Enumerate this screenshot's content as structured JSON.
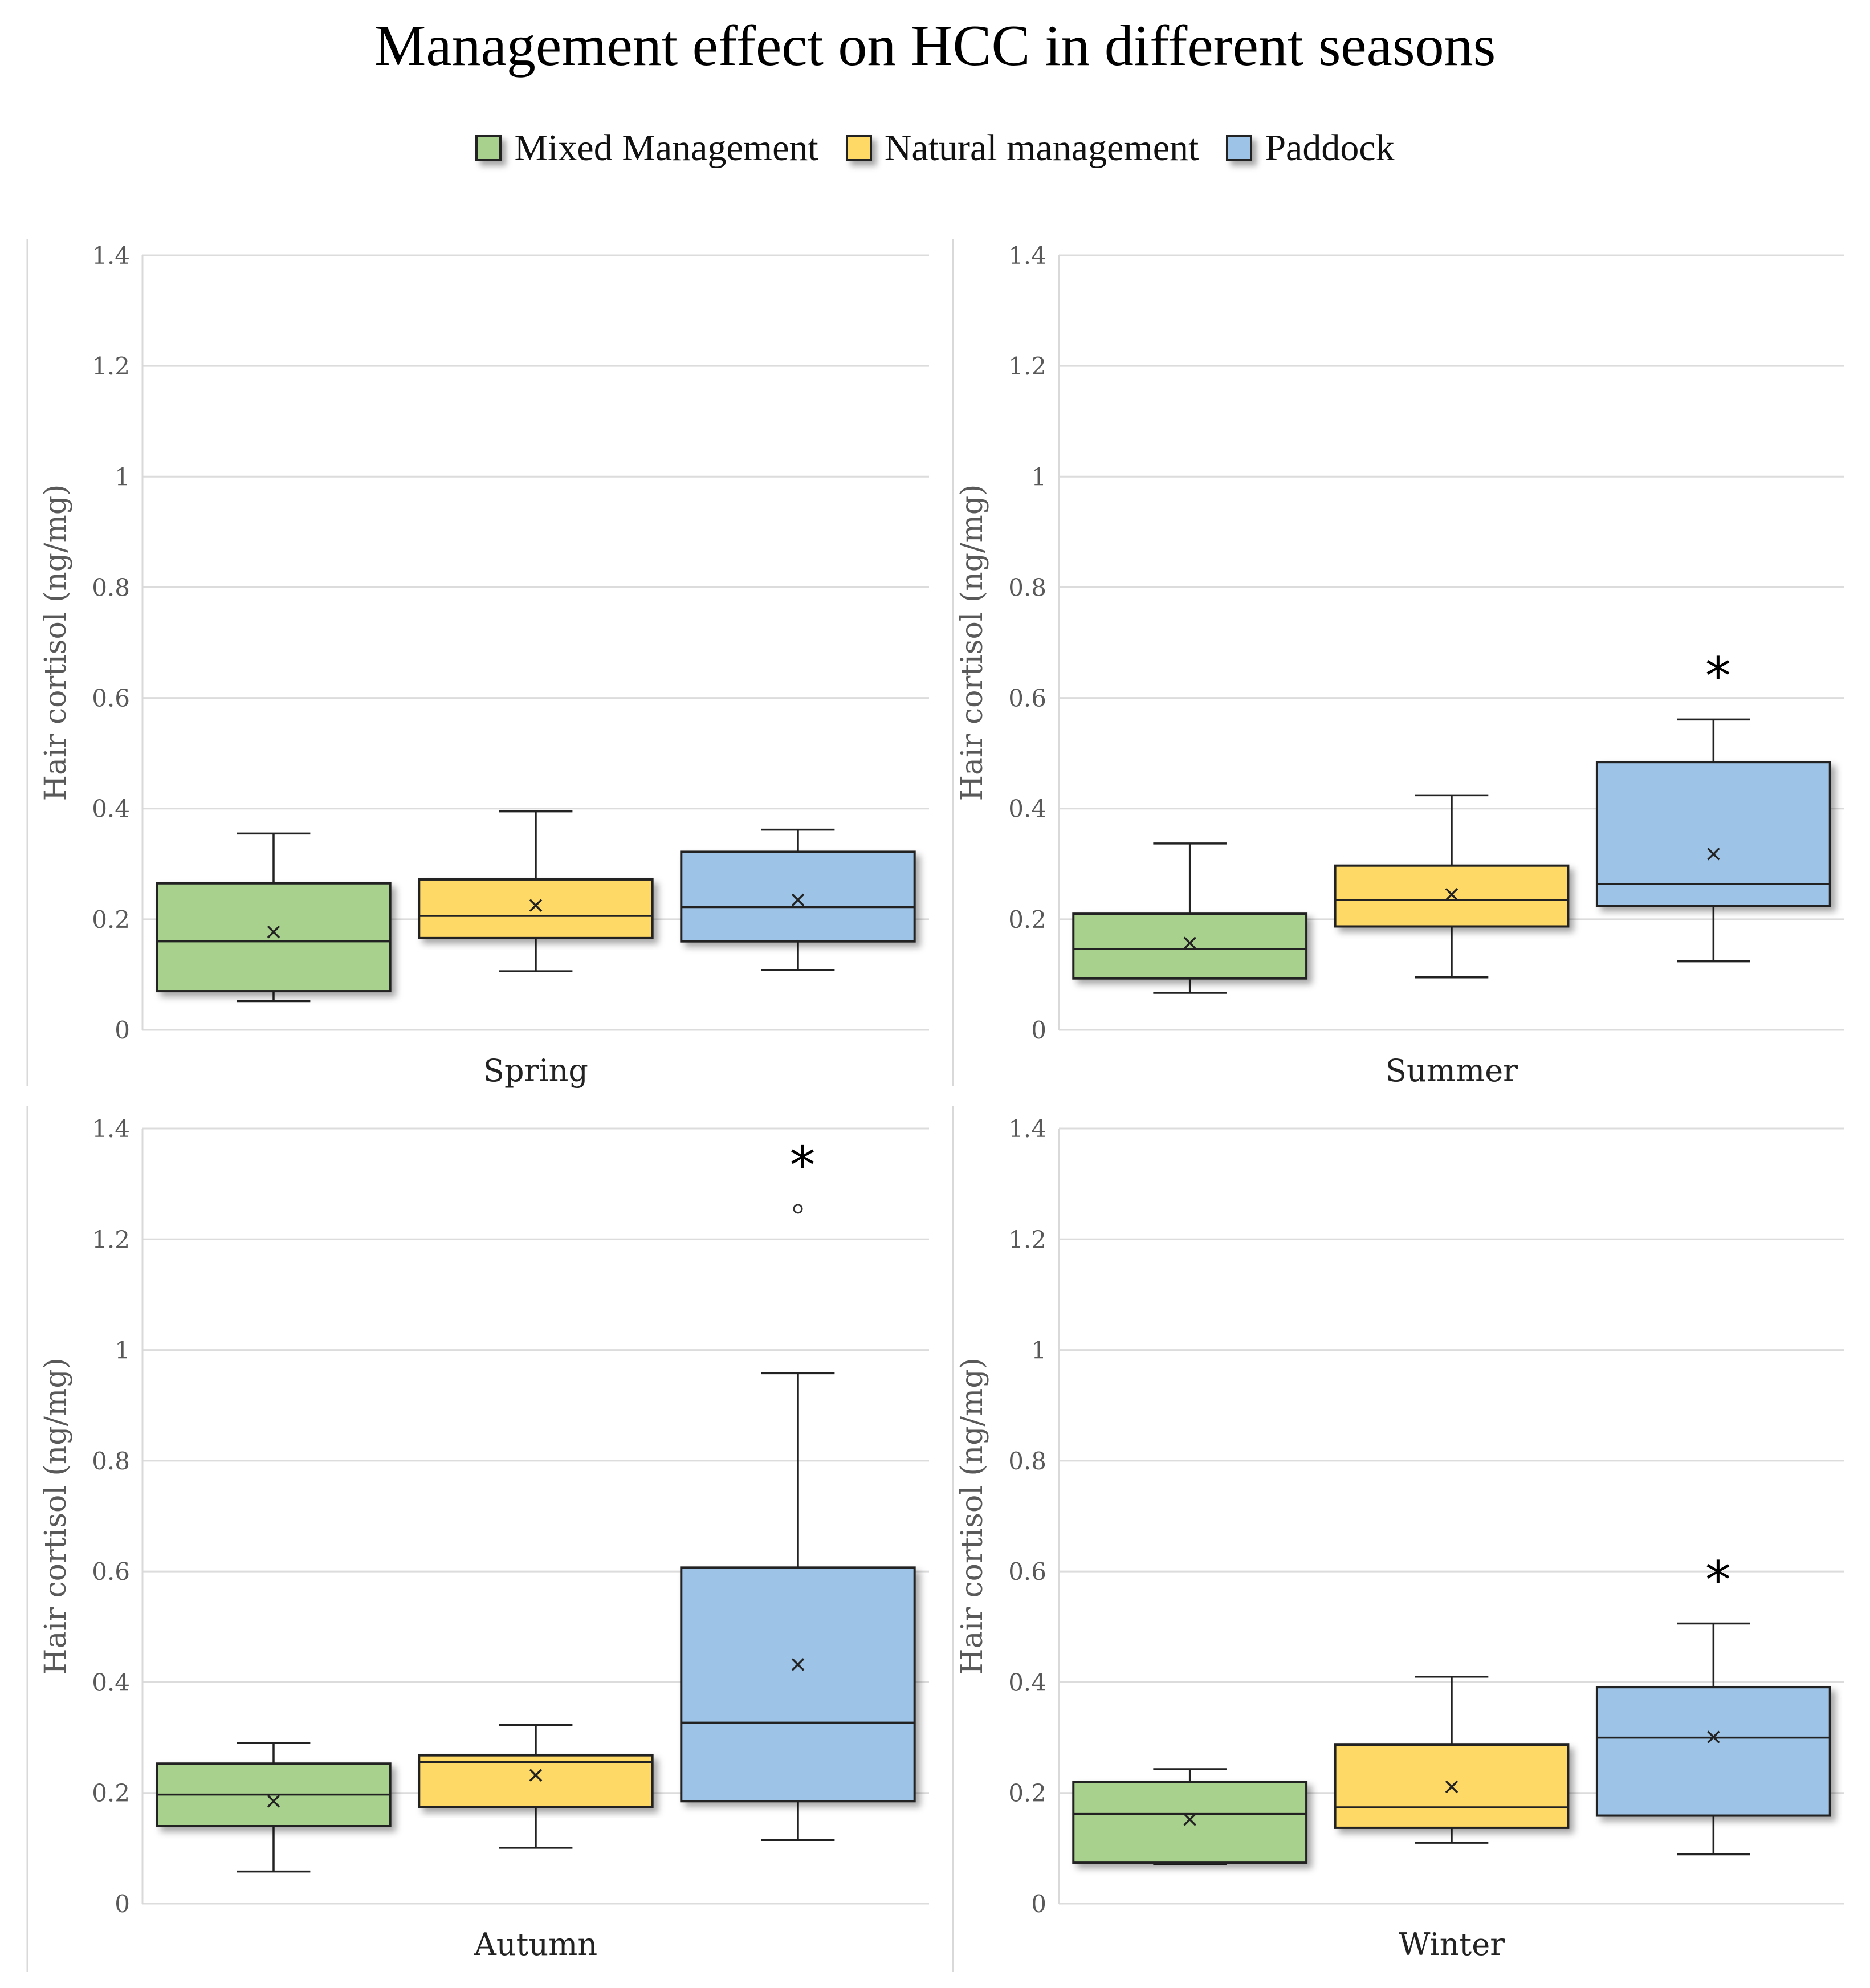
{
  "title": "Management effect on HCC in different seasons",
  "legend": [
    {
      "label": "Mixed Management",
      "color": "#a9d18e"
    },
    {
      "label": "Natural management",
      "color": "#ffd966"
    },
    {
      "label": "Paddock",
      "color": "#9dc3e6"
    }
  ],
  "chart_data": [
    {
      "type": "box",
      "season": "Spring",
      "ylabel": "Hair cortisol (ng/mg)",
      "ylim": [
        0,
        1.4
      ],
      "yticks": [
        "0",
        "0.2",
        "0.4",
        "0.6",
        "0.8",
        "1",
        "1.2",
        "1.4"
      ],
      "grid": true,
      "series": [
        {
          "name": "Mixed Management",
          "min": 0.052,
          "q1": 0.07,
          "median": 0.16,
          "q3": 0.265,
          "max": 0.355,
          "mean": 0.177
        },
        {
          "name": "Natural management",
          "min": 0.106,
          "q1": 0.166,
          "median": 0.206,
          "q3": 0.272,
          "max": 0.395,
          "mean": 0.225
        },
        {
          "name": "Paddock",
          "min": 0.108,
          "q1": 0.16,
          "median": 0.222,
          "q3": 0.322,
          "max": 0.362,
          "mean": 0.235
        }
      ],
      "annotations": []
    },
    {
      "type": "box",
      "season": "Summer",
      "ylabel": "Hair cortisol (ng/mg)",
      "ylim": [
        0,
        1.4
      ],
      "yticks": [
        "0",
        "0.2",
        "0.4",
        "0.6",
        "0.8",
        "1",
        "1.2",
        "1.4"
      ],
      "grid": true,
      "series": [
        {
          "name": "Mixed Management",
          "min": 0.067,
          "q1": 0.093,
          "median": 0.146,
          "q3": 0.21,
          "max": 0.337,
          "mean": 0.157
        },
        {
          "name": "Natural management",
          "min": 0.095,
          "q1": 0.187,
          "median": 0.235,
          "q3": 0.297,
          "max": 0.424,
          "mean": 0.245
        },
        {
          "name": "Paddock",
          "min": 0.124,
          "q1": 0.224,
          "median": 0.264,
          "q3": 0.484,
          "max": 0.561,
          "mean": 0.318
        }
      ],
      "annotations": [
        {
          "series": "Paddock",
          "text": "*"
        }
      ]
    },
    {
      "type": "box",
      "season": "Autumn",
      "ylabel": "Hair cortisol (ng/mg)",
      "ylim": [
        0,
        1.4
      ],
      "yticks": [
        "0",
        "0.2",
        "0.4",
        "0.6",
        "0.8",
        "1",
        "1.2",
        "1.4"
      ],
      "grid": true,
      "series": [
        {
          "name": "Mixed Management",
          "min": 0.058,
          "q1": 0.14,
          "median": 0.197,
          "q3": 0.253,
          "max": 0.29,
          "mean": 0.185
        },
        {
          "name": "Natural management",
          "min": 0.101,
          "q1": 0.174,
          "median": 0.256,
          "q3": 0.268,
          "max": 0.323,
          "mean": 0.232
        },
        {
          "name": "Paddock",
          "min": 0.115,
          "q1": 0.185,
          "median": 0.327,
          "q3": 0.607,
          "max": 0.958,
          "mean": 0.432,
          "outliers": [
            1.255
          ]
        }
      ],
      "annotations": [
        {
          "series": "Paddock",
          "text": "*"
        }
      ]
    },
    {
      "type": "box",
      "season": "Winter",
      "ylabel": "Hair cortisol (ng/mg)",
      "ylim": [
        0,
        1.4
      ],
      "yticks": [
        "0",
        "0.2",
        "0.4",
        "0.6",
        "0.8",
        "1",
        "1.2",
        "1.4"
      ],
      "grid": true,
      "series": [
        {
          "name": "Mixed Management",
          "min": 0.071,
          "q1": 0.074,
          "median": 0.162,
          "q3": 0.22,
          "max": 0.243,
          "mean": 0.152
        },
        {
          "name": "Natural management",
          "min": 0.11,
          "q1": 0.137,
          "median": 0.174,
          "q3": 0.287,
          "max": 0.41,
          "mean": 0.211
        },
        {
          "name": "Paddock",
          "min": 0.089,
          "q1": 0.159,
          "median": 0.3,
          "q3": 0.391,
          "max": 0.506,
          "mean": 0.301
        }
      ],
      "annotations": [
        {
          "series": "Paddock",
          "text": "*"
        }
      ]
    }
  ]
}
